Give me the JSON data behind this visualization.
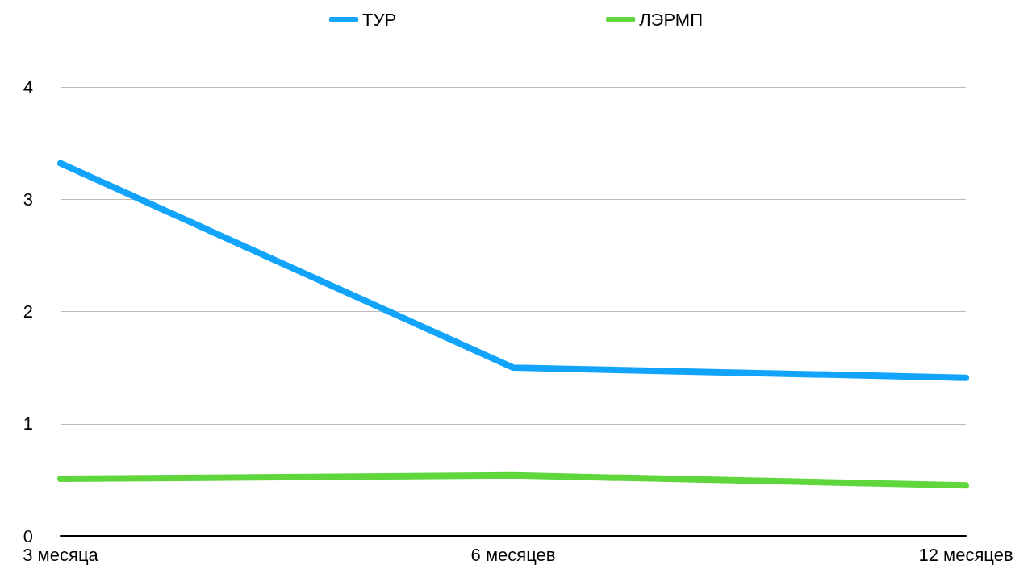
{
  "chart_data": {
    "type": "line",
    "categories": [
      "3 месяца",
      "6 месяцев",
      "12 месяцев"
    ],
    "series": [
      {
        "name": "ТУР",
        "color": "#12a4fa",
        "values": [
          3.32,
          1.5,
          1.41
        ]
      },
      {
        "name": "ЛЭРМП",
        "color": "#5fd63c",
        "values": [
          0.51,
          0.54,
          0.45
        ]
      }
    ],
    "ylim": [
      0,
      4
    ],
    "yticks": [
      0,
      1,
      2,
      3,
      4
    ],
    "grid": "y",
    "legend": "top",
    "line_style": "solid"
  }
}
